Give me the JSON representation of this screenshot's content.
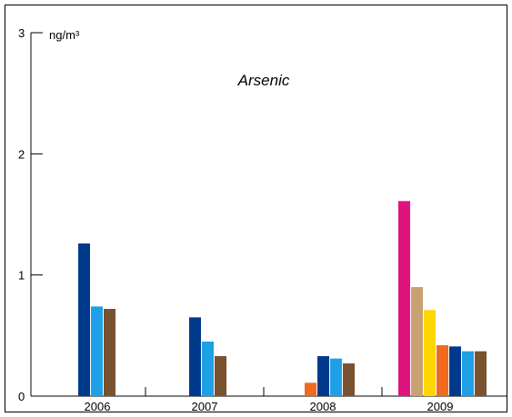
{
  "chart_data": {
    "type": "bar",
    "title": "Arsenic",
    "ylabel": "ng/m³",
    "xlabel": "",
    "ylim": [
      0,
      3
    ],
    "yticks": [
      "0",
      "1",
      "2",
      "3"
    ],
    "grid": false,
    "legend": "none",
    "categories": [
      "2006",
      "2007",
      "2008",
      "2009"
    ],
    "groups": [
      {
        "category": "2006",
        "bars": [
          {
            "value": 1.26,
            "color": "#003a8c"
          },
          {
            "value": 0.74,
            "color": "#1ea0e6"
          },
          {
            "value": 0.72,
            "color": "#7a5230"
          }
        ]
      },
      {
        "category": "2007",
        "bars": [
          {
            "value": 0.65,
            "color": "#003a8c"
          },
          {
            "value": 0.45,
            "color": "#1ea0e6"
          },
          {
            "value": 0.33,
            "color": "#7a5230"
          }
        ]
      },
      {
        "category": "2008",
        "bars": [
          {
            "value": 0.11,
            "color": "#f06a1e"
          },
          {
            "value": 0.33,
            "color": "#003a8c"
          },
          {
            "value": 0.31,
            "color": "#1ea0e6"
          },
          {
            "value": 0.27,
            "color": "#7a5230"
          }
        ]
      },
      {
        "category": "2009",
        "bars": [
          {
            "value": 1.61,
            "color": "#e0137e"
          },
          {
            "value": 0.9,
            "color": "#c9a070"
          },
          {
            "value": 0.71,
            "color": "#ffd500"
          },
          {
            "value": 0.42,
            "color": "#f06a1e"
          },
          {
            "value": 0.41,
            "color": "#003a8c"
          },
          {
            "value": 0.37,
            "color": "#1ea0e6"
          },
          {
            "value": 0.37,
            "color": "#7a5230"
          }
        ]
      }
    ]
  }
}
